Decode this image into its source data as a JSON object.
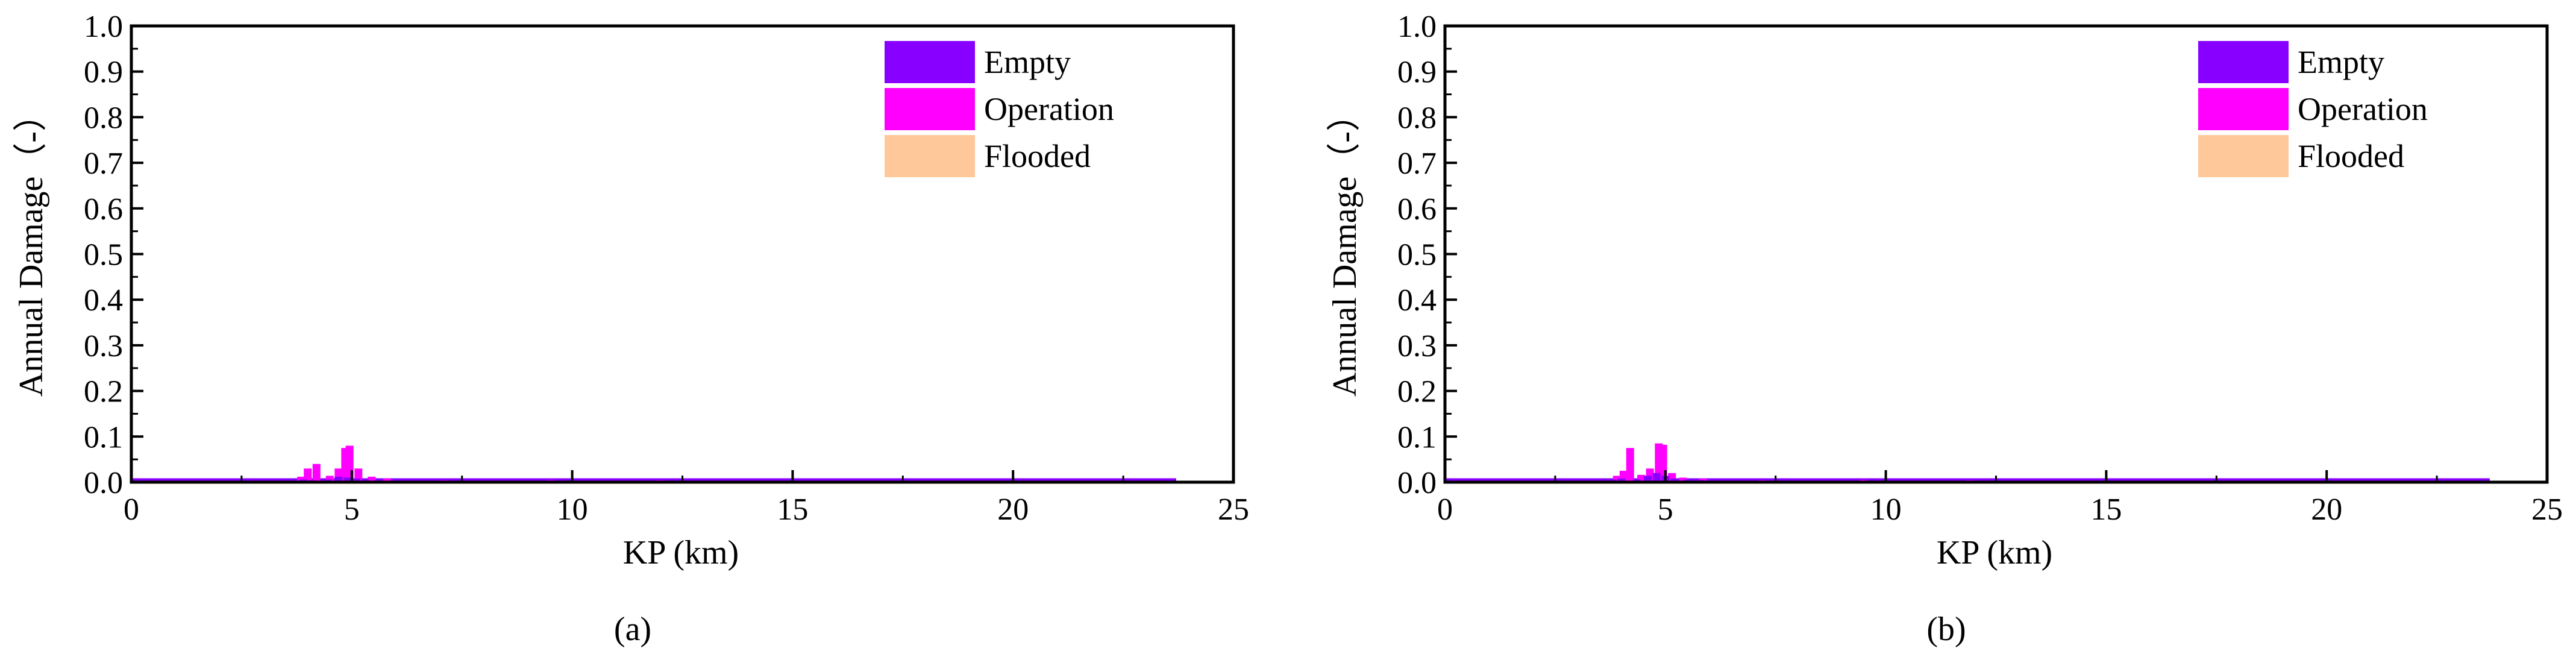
{
  "colors": {
    "empty": "#8800ff",
    "operation": "#ff00ff",
    "flooded": "#ffc89b",
    "axis": "#000000"
  },
  "chart_data": [
    {
      "panel_label": "(a)",
      "type": "bar",
      "xlabel": "KP (km)",
      "ylabel": "Annual Damage（-）",
      "xlim": [
        0,
        25
      ],
      "ylim": [
        0,
        1.0
      ],
      "xticks": [
        0,
        5,
        10,
        15,
        20,
        25
      ],
      "yticks": [
        0.0,
        0.1,
        0.2,
        0.3,
        0.4,
        0.5,
        0.6,
        0.7,
        0.8,
        0.9,
        1.0
      ],
      "grid": false,
      "legend_position": "top-right",
      "baseline_extent": [
        0,
        23.7
      ],
      "series": [
        {
          "name": "Empty",
          "color_key": "empty",
          "points": [
            [
              3.9,
              0.006
            ],
            [
              4.1,
              0.004
            ],
            [
              4.45,
              0.006
            ],
            [
              4.7,
              0.012
            ],
            [
              4.9,
              0.01
            ],
            [
              5.1,
              0.008
            ],
            [
              5.3,
              0.006
            ],
            [
              5.6,
              0.004
            ],
            [
              7.2,
              0.003
            ],
            [
              9.5,
              0.004
            ],
            [
              12.2,
              0.003
            ]
          ]
        },
        {
          "name": "Operation",
          "color_key": "operation",
          "points": [
            [
              3.85,
              0.012
            ],
            [
              4.0,
              0.03
            ],
            [
              4.2,
              0.04
            ],
            [
              4.5,
              0.014
            ],
            [
              4.7,
              0.03
            ],
            [
              4.85,
              0.075
            ],
            [
              4.95,
              0.08
            ],
            [
              5.15,
              0.03
            ],
            [
              5.45,
              0.012
            ],
            [
              5.8,
              0.008
            ],
            [
              7.1,
              0.004
            ],
            [
              9.5,
              0.005
            ],
            [
              12.0,
              0.004
            ]
          ]
        },
        {
          "name": "Flooded",
          "color_key": "flooded",
          "points": []
        }
      ]
    },
    {
      "panel_label": "(b)",
      "type": "bar",
      "xlabel": "KP (km)",
      "ylabel": "Annual Damage（-）",
      "xlim": [
        0,
        25
      ],
      "ylim": [
        0,
        1.0
      ],
      "xticks": [
        0,
        5,
        10,
        15,
        20,
        25
      ],
      "yticks": [
        0.0,
        0.1,
        0.2,
        0.3,
        0.4,
        0.5,
        0.6,
        0.7,
        0.8,
        0.9,
        1.0
      ],
      "grid": false,
      "legend_position": "top-right",
      "baseline_extent": [
        0,
        23.7
      ],
      "series": [
        {
          "name": "Empty",
          "color_key": "empty",
          "points": [
            [
              3.8,
              0.006
            ],
            [
              4.0,
              0.008
            ],
            [
              4.35,
              0.006
            ],
            [
              4.6,
              0.014
            ],
            [
              4.8,
              0.02
            ],
            [
              5.0,
              0.014
            ],
            [
              5.2,
              0.008
            ],
            [
              5.5,
              0.006
            ],
            [
              5.8,
              0.005
            ],
            [
              7.0,
              0.003
            ],
            [
              9.6,
              0.004
            ],
            [
              12.1,
              0.003
            ],
            [
              15.2,
              0.003
            ]
          ]
        },
        {
          "name": "Operation",
          "color_key": "operation",
          "points": [
            [
              3.9,
              0.014
            ],
            [
              4.05,
              0.025
            ],
            [
              4.2,
              0.075
            ],
            [
              4.45,
              0.016
            ],
            [
              4.65,
              0.03
            ],
            [
              4.85,
              0.085
            ],
            [
              4.95,
              0.082
            ],
            [
              5.15,
              0.02
            ],
            [
              5.4,
              0.01
            ],
            [
              5.85,
              0.008
            ],
            [
              7.2,
              0.004
            ],
            [
              9.5,
              0.005
            ],
            [
              11.9,
              0.004
            ]
          ]
        },
        {
          "name": "Flooded",
          "color_key": "flooded",
          "points": []
        }
      ]
    }
  ]
}
